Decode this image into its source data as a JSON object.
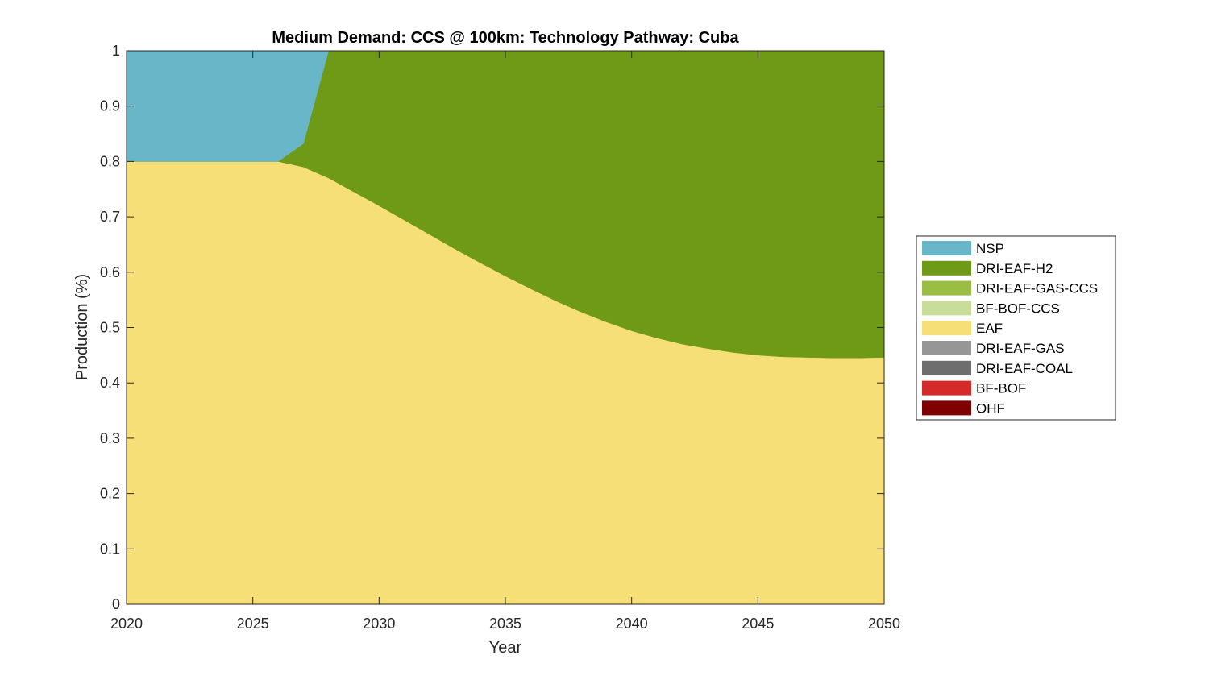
{
  "chart_data": {
    "type": "area",
    "title": "Medium Demand: CCS @ 100km: Technology Pathway: Cuba",
    "xlabel": "Year",
    "ylabel": "Production (%)",
    "xlim": [
      2020,
      2050
    ],
    "ylim": [
      0,
      1
    ],
    "xticks": [
      "2020",
      "2025",
      "2030",
      "2035",
      "2040",
      "2045",
      "2050"
    ],
    "yticks": [
      "0",
      "0.1",
      "0.2",
      "0.3",
      "0.4",
      "0.5",
      "0.6",
      "0.7",
      "0.8",
      "0.9",
      "1"
    ],
    "legend_position": "right",
    "x": [
      2020,
      2021,
      2022,
      2023,
      2024,
      2025,
      2026,
      2027,
      2028,
      2029,
      2030,
      2031,
      2032,
      2033,
      2034,
      2035,
      2036,
      2037,
      2038,
      2039,
      2040,
      2041,
      2042,
      2043,
      2044,
      2045,
      2046,
      2047,
      2048,
      2049,
      2050
    ],
    "series": [
      {
        "name": "OHF",
        "color": "#7e0000",
        "values": [
          0,
          0,
          0,
          0,
          0,
          0,
          0,
          0,
          0,
          0,
          0,
          0,
          0,
          0,
          0,
          0,
          0,
          0,
          0,
          0,
          0,
          0,
          0,
          0,
          0,
          0,
          0,
          0,
          0,
          0,
          0
        ]
      },
      {
        "name": "BF-BOF",
        "color": "#d42a2a",
        "values": [
          0,
          0,
          0,
          0,
          0,
          0,
          0,
          0,
          0,
          0,
          0,
          0,
          0,
          0,
          0,
          0,
          0,
          0,
          0,
          0,
          0,
          0,
          0,
          0,
          0,
          0,
          0,
          0,
          0,
          0,
          0
        ]
      },
      {
        "name": "DRI-EAF-COAL",
        "color": "#6e6e6e",
        "values": [
          0,
          0,
          0,
          0,
          0,
          0,
          0,
          0,
          0,
          0,
          0,
          0,
          0,
          0,
          0,
          0,
          0,
          0,
          0,
          0,
          0,
          0,
          0,
          0,
          0,
          0,
          0,
          0,
          0,
          0,
          0
        ]
      },
      {
        "name": "DRI-EAF-GAS",
        "color": "#969696",
        "values": [
          0,
          0,
          0,
          0,
          0,
          0,
          0,
          0,
          0,
          0,
          0,
          0,
          0,
          0,
          0,
          0,
          0,
          0,
          0,
          0,
          0,
          0,
          0,
          0,
          0,
          0,
          0,
          0,
          0,
          0,
          0
        ]
      },
      {
        "name": "EAF",
        "color": "#f7df78",
        "values": [
          0.8,
          0.8,
          0.8,
          0.8,
          0.8,
          0.8,
          0.8,
          0.79,
          0.77,
          0.745,
          0.72,
          0.694,
          0.668,
          0.642,
          0.617,
          0.593,
          0.57,
          0.548,
          0.528,
          0.51,
          0.494,
          0.481,
          0.47,
          0.462,
          0.455,
          0.45,
          0.447,
          0.446,
          0.445,
          0.445,
          0.446
        ]
      },
      {
        "name": "BF-BOF-CCS",
        "color": "#c9dd9a",
        "values": [
          0,
          0,
          0,
          0,
          0,
          0,
          0,
          0,
          0,
          0,
          0,
          0,
          0,
          0,
          0,
          0,
          0,
          0,
          0,
          0,
          0,
          0,
          0,
          0,
          0,
          0,
          0,
          0,
          0,
          0,
          0
        ]
      },
      {
        "name": "DRI-EAF-GAS-CCS",
        "color": "#9abd44",
        "values": [
          0,
          0,
          0,
          0,
          0,
          0,
          0,
          0,
          0,
          0,
          0,
          0,
          0,
          0,
          0,
          0,
          0,
          0,
          0,
          0,
          0,
          0,
          0,
          0,
          0,
          0,
          0,
          0,
          0,
          0,
          0
        ]
      },
      {
        "name": "DRI-EAF-H2",
        "color": "#6f9a17",
        "values": [
          0,
          0,
          0,
          0,
          0,
          0,
          0,
          0.042,
          0.23,
          0.255,
          0.28,
          0.306,
          0.332,
          0.358,
          0.383,
          0.407,
          0.43,
          0.452,
          0.472,
          0.49,
          0.506,
          0.519,
          0.53,
          0.538,
          0.545,
          0.55,
          0.553,
          0.554,
          0.555,
          0.555,
          0.554
        ]
      },
      {
        "name": "NSP",
        "color": "#68b6c8",
        "values": [
          0.2,
          0.2,
          0.2,
          0.2,
          0.2,
          0.2,
          0.2,
          0.168,
          0,
          0,
          0,
          0,
          0,
          0,
          0,
          0,
          0,
          0,
          0,
          0,
          0,
          0,
          0,
          0,
          0,
          0,
          0,
          0,
          0,
          0,
          0
        ]
      }
    ],
    "legend_order": [
      "NSP",
      "DRI-EAF-H2",
      "DRI-EAF-GAS-CCS",
      "BF-BOF-CCS",
      "EAF",
      "DRI-EAF-GAS",
      "DRI-EAF-COAL",
      "BF-BOF",
      "OHF"
    ]
  }
}
